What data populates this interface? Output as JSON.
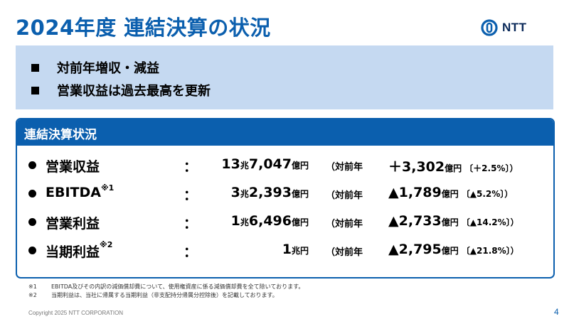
{
  "title": "2024年度 連結決算の状況",
  "logo": {
    "text": "NTT"
  },
  "summary": {
    "points": [
      "対前年増収・減益",
      "営業収益は過去最高を更新"
    ]
  },
  "panel": {
    "title": "連結決算状況",
    "colon": "：",
    "prev_label": "（対前年",
    "rows": [
      {
        "label": "営業収益",
        "sup": "",
        "amount_big1": "13",
        "amount_unit1": "兆",
        "amount_big2": " 7,047",
        "amount_unit2": "億円",
        "change_sign": "＋",
        "change_value": "3,302",
        "change_unit": "億円",
        "pct_open": "〔",
        "pct_value": "＋2.5%",
        "pct_close": "〕）"
      },
      {
        "label": "EBITDA",
        "sup": "※1",
        "amount_big1": "3",
        "amount_unit1": "兆",
        "amount_big2": " 2,393",
        "amount_unit2": "億円",
        "change_sign": "▲",
        "change_value": "1,789",
        "change_unit": "億円",
        "pct_open": "〔",
        "pct_value": "▲5.2%",
        "pct_close": "〕）"
      },
      {
        "label": "営業利益",
        "sup": "",
        "amount_big1": "1",
        "amount_unit1": "兆",
        "amount_big2": " 6,496",
        "amount_unit2": "億円",
        "change_sign": "▲",
        "change_value": "2,733",
        "change_unit": "億円",
        "pct_open": "〔",
        "pct_value": "▲14.2%",
        "pct_close": "〕）"
      },
      {
        "label": "当期利益",
        "sup": "※2",
        "amount_big1": "1",
        "amount_unit1": "兆円",
        "amount_big2": "",
        "amount_unit2": "",
        "change_sign": "▲",
        "change_value": "2,795",
        "change_unit": "億円",
        "pct_open": "〔",
        "pct_value": "▲21.8%",
        "pct_close": "〕）"
      }
    ]
  },
  "notes": [
    {
      "mark": "※1",
      "text": "EBITDA及びその内訳の減価償却費について、使用権資産に係る減価償却費を全て除いております。"
    },
    {
      "mark": "※2",
      "text": "当期利益は、当社に帰属する当期利益（非支配持分帰属分控除後）を記載しております。"
    }
  ],
  "footer": {
    "copyright": "Copyright 2025 NTT CORPORATION",
    "page_number": "4"
  },
  "colors": {
    "brand_blue": "#0b5fae",
    "summary_bg": "#c5d9f1"
  }
}
